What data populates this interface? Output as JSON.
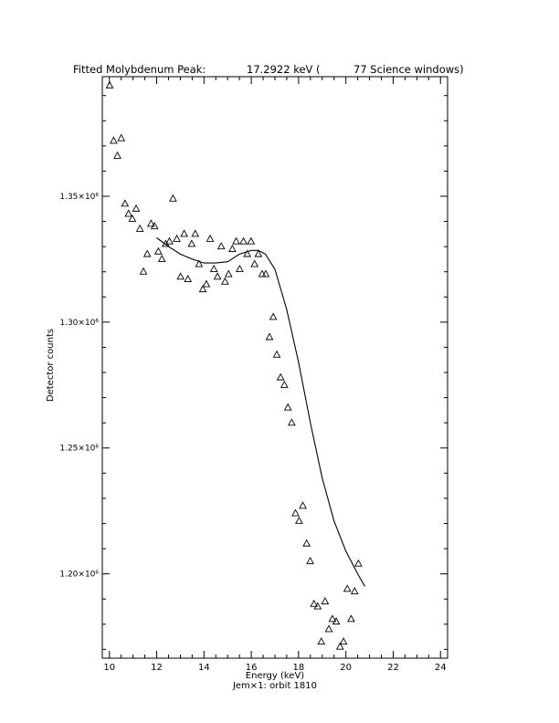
{
  "header": {
    "left": "Fitted Molybdenum Peak:",
    "mid": "17.2922 keV (",
    "right": "77 Science windows)"
  },
  "footer": "Jem×1: orbit 1810",
  "chart_data": {
    "type": "scatter",
    "xlabel": "Energy (keV)",
    "ylabel": "Detector counts",
    "xlim": [
      9.7,
      24.3
    ],
    "ylim": [
      1166500.0,
      1397500.0
    ],
    "x_ticks": [
      "10",
      "12",
      "14",
      "16",
      "18",
      "20",
      "22",
      "24"
    ],
    "x_tick_values": [
      10,
      12,
      14,
      16,
      18,
      20,
      22,
      24
    ],
    "y_ticks": [
      "1.20×10⁶",
      "1.25×10⁶",
      "1.30×10⁶",
      "1.35×10⁶"
    ],
    "y_tick_values": [
      1200000,
      1250000,
      1300000,
      1350000
    ],
    "grid": false,
    "series": [
      {
        "marker": "triangle",
        "points": [
          [
            10.01,
            1394000.0
          ],
          [
            10.18,
            1372000.0
          ],
          [
            10.34,
            1366000.0
          ],
          [
            10.5,
            1373000.0
          ],
          [
            10.66,
            1347000.0
          ],
          [
            10.81,
            1343000.0
          ],
          [
            10.97,
            1341000.0
          ],
          [
            11.13,
            1345000.0
          ],
          [
            11.29,
            1337000.0
          ],
          [
            11.44,
            1320000.0
          ],
          [
            11.6,
            1327000.0
          ],
          [
            11.76,
            1339000.0
          ],
          [
            11.91,
            1338000.0
          ],
          [
            12.07,
            1328000.0
          ],
          [
            12.22,
            1325000.0
          ],
          [
            12.38,
            1331000.0
          ],
          [
            12.54,
            1332000.0
          ],
          [
            12.69,
            1349000.0
          ],
          [
            12.85,
            1333000.0
          ],
          [
            13.01,
            1318000.0
          ],
          [
            13.16,
            1335000.0
          ],
          [
            13.32,
            1317000.0
          ],
          [
            13.48,
            1331000.0
          ],
          [
            13.63,
            1335000.0
          ],
          [
            13.79,
            1323000.0
          ],
          [
            13.95,
            1313000.0
          ],
          [
            14.1,
            1315000.0
          ],
          [
            14.26,
            1333000.0
          ],
          [
            14.42,
            1321000.0
          ],
          [
            14.57,
            1318000.0
          ],
          [
            14.73,
            1330000.0
          ],
          [
            14.89,
            1316000.0
          ],
          [
            15.04,
            1319000.0
          ],
          [
            15.2,
            1329000.0
          ],
          [
            15.36,
            1332000.0
          ],
          [
            15.51,
            1321000.0
          ],
          [
            15.67,
            1332000.0
          ],
          [
            15.83,
            1327000.0
          ],
          [
            15.99,
            1332000.0
          ],
          [
            16.14,
            1323000.0
          ],
          [
            16.3,
            1327000.0
          ],
          [
            16.46,
            1319000.0
          ],
          [
            16.61,
            1319000.0
          ],
          [
            16.77,
            1294000.0
          ],
          [
            16.93,
            1302000.0
          ],
          [
            17.08,
            1287000.0
          ],
          [
            17.24,
            1278000.0
          ],
          [
            17.4,
            1275000.0
          ],
          [
            17.55,
            1266000.0
          ],
          [
            17.71,
            1260000.0
          ],
          [
            17.87,
            1224000.0
          ],
          [
            18.02,
            1221000.0
          ],
          [
            18.18,
            1227000.0
          ],
          [
            18.34,
            1212000.0
          ],
          [
            18.49,
            1205000.0
          ],
          [
            18.65,
            1188000.0
          ],
          [
            18.81,
            1187000.0
          ],
          [
            18.96,
            1173000.0
          ],
          [
            19.12,
            1189000.0
          ],
          [
            19.28,
            1178000.0
          ],
          [
            19.43,
            1182000.0
          ],
          [
            19.59,
            1181000.0
          ],
          [
            19.75,
            1171000.0
          ],
          [
            19.9,
            1173000.0
          ],
          [
            20.06,
            1194000.0
          ],
          [
            20.22,
            1182000.0
          ],
          [
            20.37,
            1193000.0
          ],
          [
            20.53,
            1204000.0
          ]
        ]
      },
      {
        "marker": "line",
        "points": [
          [
            12.0,
            1333500.0
          ],
          [
            12.5,
            1330000.0
          ],
          [
            13.0,
            1327000.0
          ],
          [
            13.5,
            1325000.0
          ],
          [
            14.0,
            1323500.0
          ],
          [
            14.5,
            1323500.0
          ],
          [
            15.0,
            1324000.0
          ],
          [
            15.5,
            1327000.0
          ],
          [
            16.0,
            1328500.0
          ],
          [
            16.3,
            1328500.0
          ],
          [
            16.6,
            1327000.0
          ],
          [
            17.0,
            1321000.0
          ],
          [
            17.5,
            1305000.0
          ],
          [
            18.0,
            1284000.0
          ],
          [
            18.5,
            1260000.0
          ],
          [
            19.0,
            1238000.0
          ],
          [
            19.5,
            1221000.0
          ],
          [
            20.0,
            1209000.0
          ],
          [
            20.5,
            1200000.0
          ],
          [
            20.8,
            1195000.0
          ]
        ]
      }
    ]
  }
}
